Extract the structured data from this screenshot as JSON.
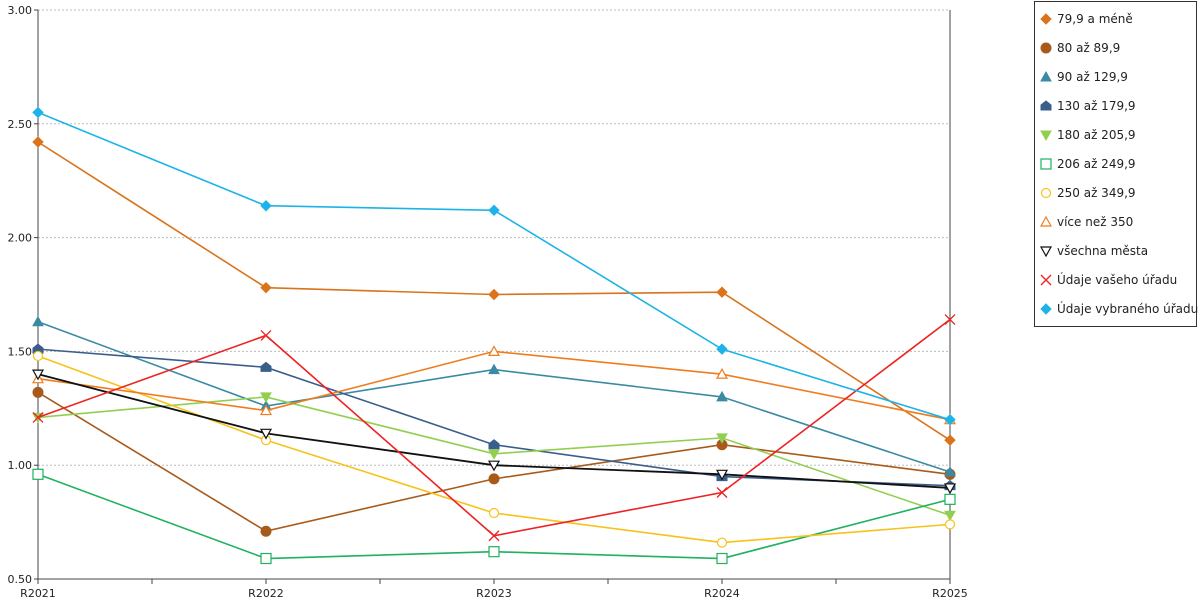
{
  "chart_data": {
    "type": "line",
    "categories": [
      "R2021",
      "R2022",
      "R2023",
      "R2024",
      "R2025"
    ],
    "ylim": [
      0.5,
      3.0
    ],
    "y_ticks": [
      "0.50",
      "1.00",
      "1.50",
      "2.00",
      "2.50",
      "3.00"
    ],
    "grid": "horizontal-dotted",
    "legend_position": "right",
    "series": [
      {
        "name": "79,9 a méně",
        "values": [
          2.42,
          1.78,
          1.75,
          1.76,
          1.11
        ],
        "color": "#d9741b",
        "marker": "diamond-filled"
      },
      {
        "name": "80 až 89,9",
        "values": [
          1.32,
          0.71,
          0.94,
          1.09,
          0.96
        ],
        "color": "#a85a1a",
        "marker": "circle-filled"
      },
      {
        "name": "90 až 129,9",
        "values": [
          1.63,
          1.26,
          1.42,
          1.3,
          0.97
        ],
        "color": "#3a8aa3",
        "marker": "triangle-up-filled"
      },
      {
        "name": "130 až 179,9",
        "values": [
          1.51,
          1.43,
          1.09,
          0.95,
          0.91
        ],
        "color": "#3a5e8c",
        "marker": "house-filled"
      },
      {
        "name": "180 až 205,9",
        "values": [
          1.21,
          1.3,
          1.05,
          1.12,
          0.78
        ],
        "color": "#92cf50",
        "marker": "triangle-down-filled"
      },
      {
        "name": "206 až 249,9",
        "values": [
          0.96,
          0.59,
          0.62,
          0.59,
          0.85
        ],
        "color": "#1fb060",
        "marker": "square-open"
      },
      {
        "name": "250 až 349,9",
        "values": [
          1.48,
          1.11,
          0.79,
          0.66,
          0.74
        ],
        "color": "#f7c21a",
        "marker": "circle-open"
      },
      {
        "name": "více než 350",
        "values": [
          1.38,
          1.24,
          1.5,
          1.4,
          1.2
        ],
        "color": "#ef7d1f",
        "marker": "triangle-up-open"
      },
      {
        "name": "všechna města",
        "values": [
          1.4,
          1.14,
          1.0,
          0.96,
          0.9
        ],
        "color": "#111111",
        "marker": "triangle-down-open"
      },
      {
        "name": "Údaje vašeho úřadu",
        "values": [
          1.21,
          1.57,
          0.69,
          0.88,
          1.64
        ],
        "color": "#ee2222",
        "marker": "cross"
      },
      {
        "name": "Údaje vybraného úřadu",
        "values": [
          2.55,
          2.14,
          2.12,
          1.51,
          1.2
        ],
        "color": "#1cb4e8",
        "marker": "diamond-filled"
      }
    ]
  }
}
